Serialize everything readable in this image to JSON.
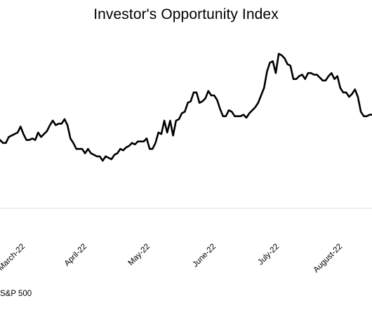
{
  "chart_data": {
    "type": "line",
    "title": "Investor's Opportunity Index",
    "xlabel": "",
    "ylabel": "",
    "grid": false,
    "x_tick_labels": [
      "March-22",
      "April-22",
      "May-22",
      "June-22",
      "July-22",
      "August-22"
    ],
    "series": [
      {
        "name": "",
        "color": "#000000",
        "values": [
          46,
          44,
          44,
          48,
          49,
          50,
          51,
          55,
          50,
          46,
          46,
          47,
          46,
          51,
          48,
          50,
          52,
          56,
          59,
          56,
          57,
          57,
          60,
          56,
          47,
          44,
          40,
          40,
          40,
          37,
          40,
          37,
          36,
          35,
          35,
          32,
          35,
          34,
          33,
          36,
          37,
          40,
          39,
          41,
          42,
          44,
          43,
          45,
          45,
          45,
          47,
          40,
          40,
          44,
          51,
          50,
          59,
          51,
          59,
          49,
          59,
          60,
          64,
          65,
          71,
          72,
          78,
          78,
          71,
          72,
          74,
          79,
          76,
          76,
          73,
          67,
          62,
          62,
          66,
          65,
          62,
          62,
          62,
          63,
          61,
          64,
          66,
          68,
          71,
          76,
          81,
          92,
          98,
          99,
          91,
          104,
          103,
          101,
          97,
          96,
          87,
          87,
          89,
          90,
          87,
          91,
          91,
          90,
          90,
          88,
          86,
          86,
          89,
          91,
          87,
          89,
          81,
          78,
          78,
          75,
          77,
          80,
          75,
          65,
          62,
          62,
          63,
          63,
          65
        ]
      }
    ],
    "ylim": [
      0,
      110
    ]
  },
  "footer": {
    "source_text": "S&P 500"
  }
}
